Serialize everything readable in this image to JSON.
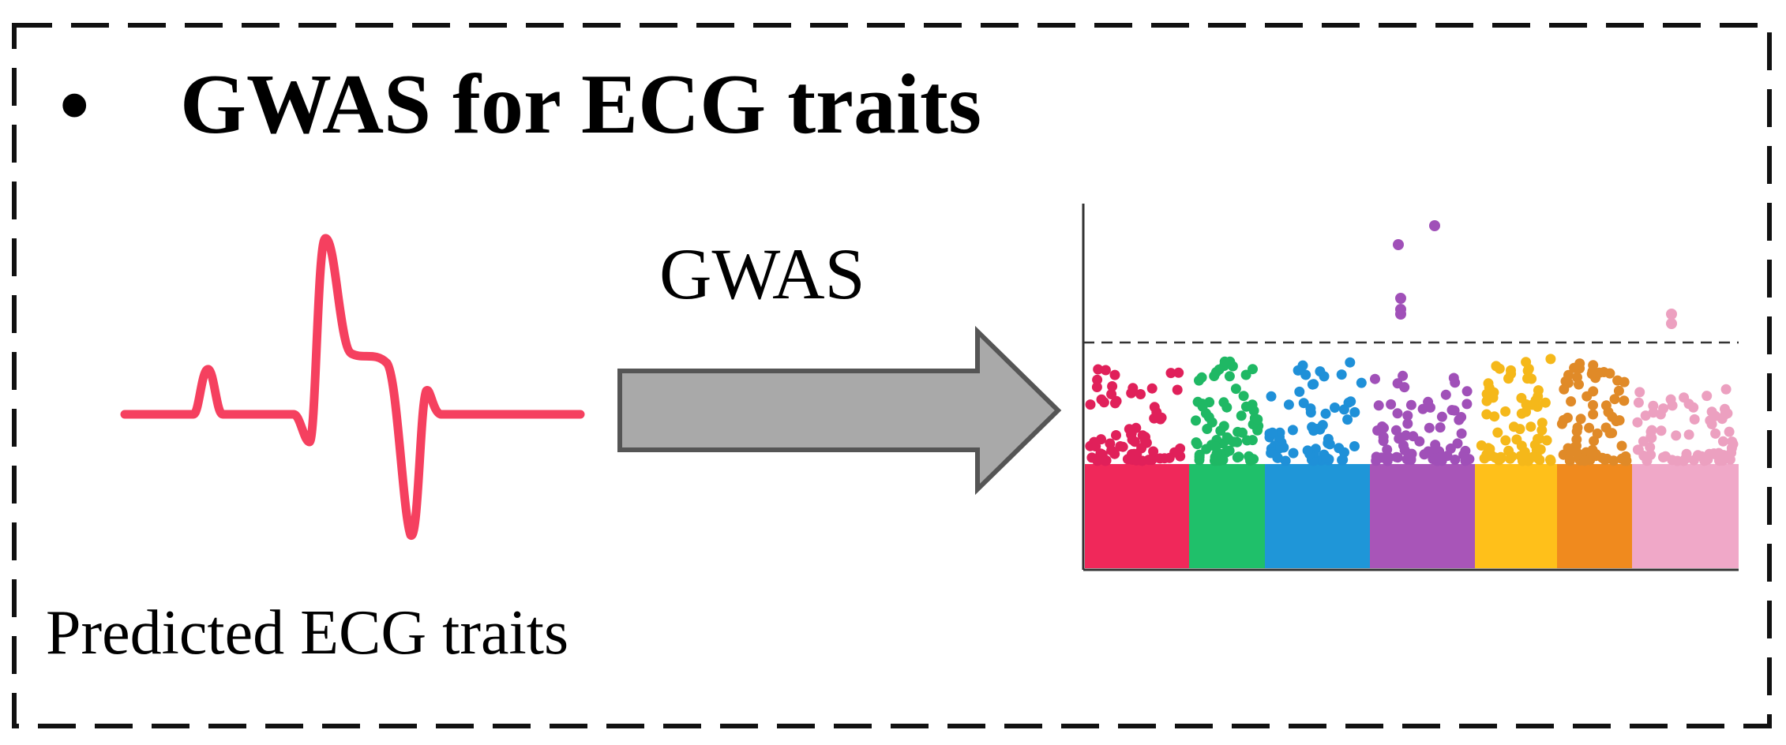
{
  "panel": {
    "bullet": "•",
    "title": "GWAS for ECG traits"
  },
  "ecg": {
    "label": "Predicted ECG traits",
    "color": "#f5405f"
  },
  "arrow": {
    "label": "GWAS",
    "fill": "#a9a9a9",
    "stroke": "#555555"
  },
  "manhattan": {
    "colors": [
      "#f0285a",
      "#1fc06a",
      "#1f96d8",
      "#a855b8",
      "#ffc01a",
      "#f08a1e",
      "#f0a8c8"
    ],
    "dotColors": [
      "#e0205a",
      "#1fb864",
      "#1f90d8",
      "#a050b8",
      "#f5b81a",
      "#e08a28",
      "#eca0c0"
    ]
  }
}
